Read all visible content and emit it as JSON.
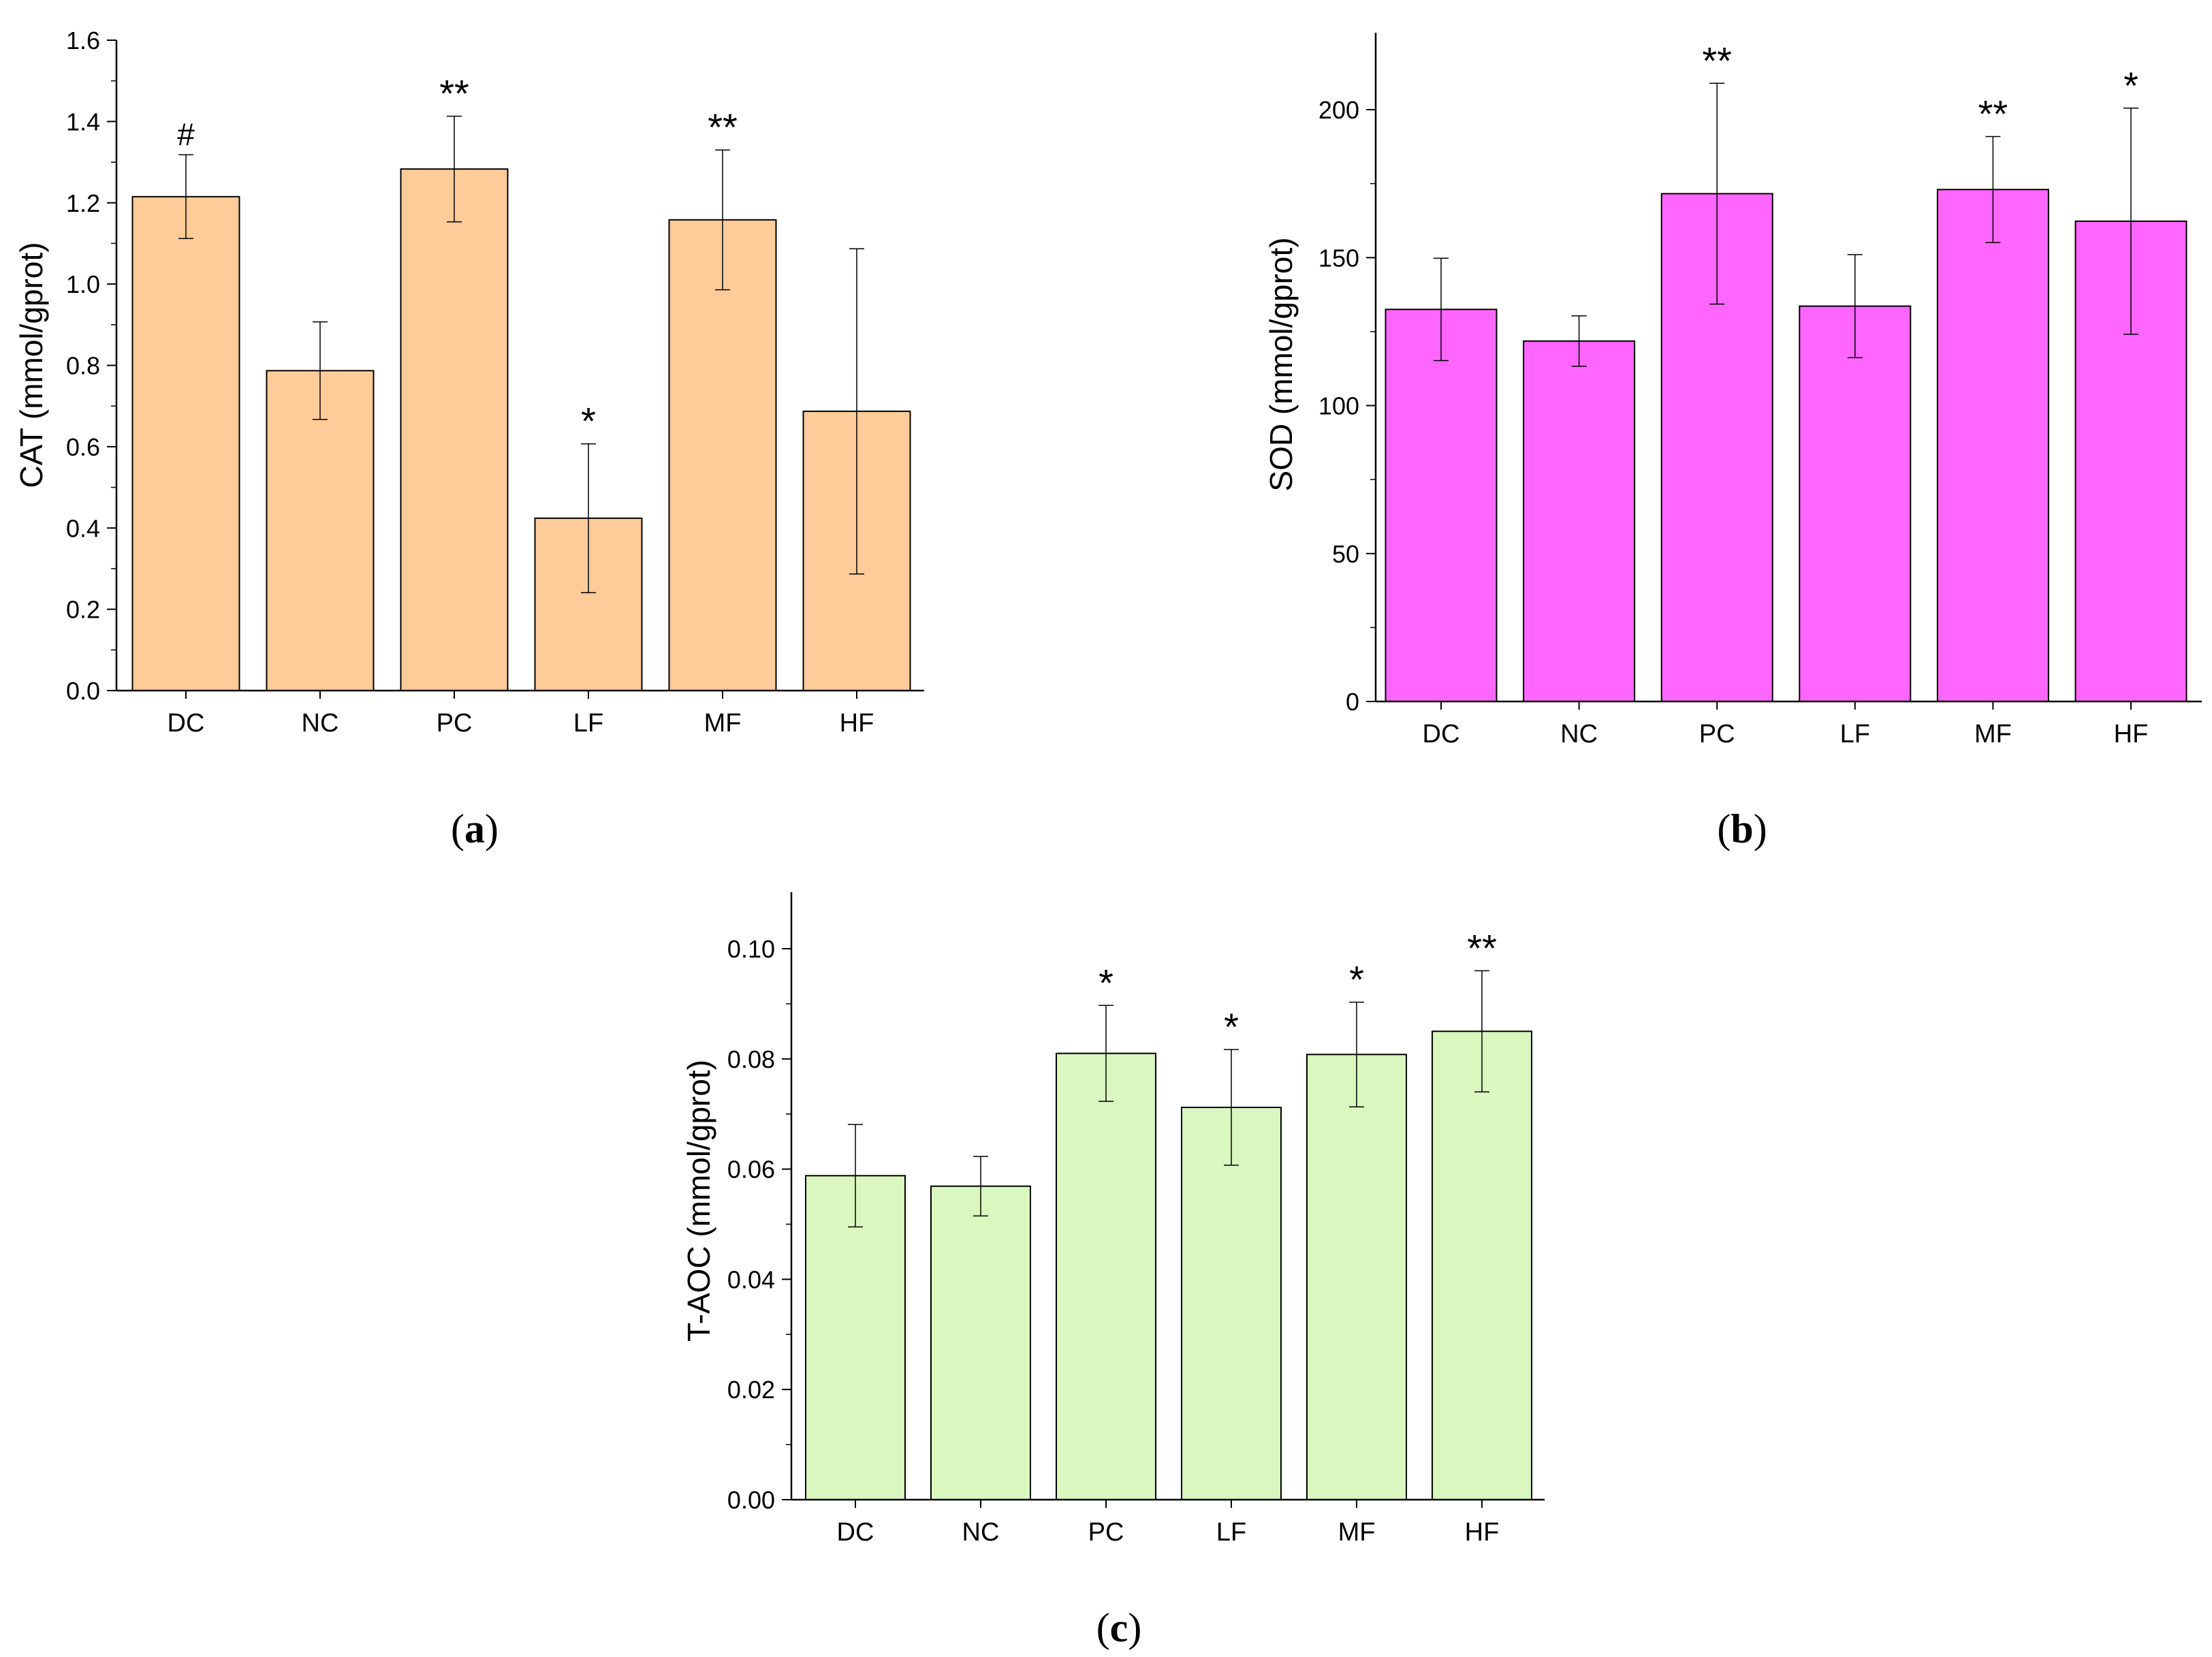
{
  "chart_data": [
    {
      "panel": "a",
      "caption_open": "(",
      "caption_letter": "a",
      "caption_close": ")",
      "type": "bar",
      "categories": [
        "DC",
        "NC",
        "PC",
        "LF",
        "MF",
        "HF"
      ],
      "values": [
        1.215,
        0.787,
        1.283,
        0.424,
        1.158,
        0.687
      ],
      "errors": [
        0.103,
        0.12,
        0.13,
        0.183,
        0.172,
        0.4
      ],
      "annotations": [
        "#",
        "",
        "**",
        "*",
        "**",
        ""
      ],
      "ylabel": "CAT (mmol/gprot)",
      "xlabel": "",
      "ylim": [
        0,
        1.6
      ],
      "yticks": [
        0.0,
        0.2,
        0.4,
        0.6,
        0.8,
        1.0,
        1.2,
        1.4,
        1.6
      ],
      "ytick_labels": [
        "0.0",
        "0.2",
        "0.4",
        "0.6",
        "0.8",
        "1.0",
        "1.2",
        "1.4",
        "1.6"
      ],
      "color": "#FFCC99"
    },
    {
      "panel": "b",
      "caption_open": "(",
      "caption_letter": "b",
      "caption_close": ")",
      "type": "bar",
      "categories": [
        "DC",
        "NC",
        "PC",
        "LF",
        "MF",
        "HF"
      ],
      "values": [
        132.5,
        121.8,
        171.6,
        133.6,
        173.0,
        162.3
      ],
      "errors": [
        17.3,
        8.5,
        37.3,
        17.4,
        17.9,
        38.2
      ],
      "annotations": [
        "",
        "",
        "**",
        "",
        "**",
        "*"
      ],
      "ylabel": "SOD (mmol/gprot)",
      "xlabel": "",
      "ylim": [
        0,
        225
      ],
      "yticks": [
        0,
        50,
        100,
        150,
        200
      ],
      "ytick_labels": [
        "0",
        "50",
        "100",
        "150",
        "200"
      ],
      "color": "#FF66FF"
    },
    {
      "panel": "c",
      "caption_open": "(",
      "caption_letter": "c",
      "caption_close": ")",
      "type": "bar",
      "categories": [
        "DC",
        "NC",
        "PC",
        "LF",
        "MF",
        "HF"
      ],
      "values": [
        0.0588,
        0.0569,
        0.081,
        0.0712,
        0.0808,
        0.085
      ],
      "errors": [
        0.0093,
        0.0054,
        0.0087,
        0.0105,
        0.0095,
        0.011
      ],
      "annotations": [
        "",
        "",
        "*",
        "*",
        "*",
        "**"
      ],
      "ylabel": "T-AOC (mmol/gprot)",
      "xlabel": "",
      "ylim": [
        0,
        0.11
      ],
      "yticks": [
        0.0,
        0.02,
        0.04,
        0.06,
        0.08,
        0.1
      ],
      "ytick_labels": [
        "0.00",
        "0.02",
        "0.04",
        "0.06",
        "0.08",
        "0.10"
      ],
      "color": "#D9F7BE"
    }
  ]
}
